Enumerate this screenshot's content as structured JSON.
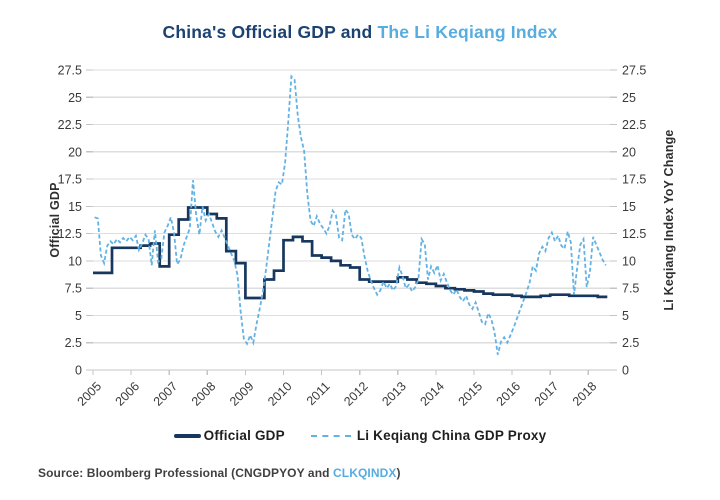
{
  "title": {
    "part1": "China's Official GDP and ",
    "part2": "The Li Keqiang Index"
  },
  "colors": {
    "navy_line": "#17375E",
    "blue_line": "#63B2E4",
    "title_navy": "#1C4272",
    "title_blue": "#57ACE0",
    "grid": "#DEDEDE",
    "axis": "#C4C4C4",
    "tick_text": "#3A3A3A",
    "legend_text": "#1F1F1F",
    "source_text": "#3F3F3F"
  },
  "legend": {
    "items": [
      {
        "label": "Official GDP",
        "style": "solid",
        "color": "#17375E"
      },
      {
        "label": "Li Keqiang China GDP Proxy",
        "style": "dashed",
        "color": "#63B2E4"
      }
    ]
  },
  "source": {
    "prefix": "Source: Bloomberg Professional (CNGDPYOY and ",
    "ticker": "CLKQINDX",
    "suffix": ")"
  },
  "chart_data": {
    "type": "line",
    "title": "China's Official GDP and The Li Keqiang Index",
    "ylabel_left": "Official GDP",
    "ylabel_right": "Li Keqiang Index YoY Change",
    "xlabel": "",
    "ylim": [
      0,
      27.5
    ],
    "xlim": [
      2005,
      2018.57
    ],
    "grid": "horizontal",
    "legend_position": "bottom",
    "grid_color": "#DEDEDE",
    "axis_color": "#C4C4C4",
    "y_ticks": [
      0,
      2.5,
      5,
      7.5,
      10,
      12.5,
      15,
      17.5,
      20,
      22.5,
      25,
      27.5
    ],
    "x_ticks": [
      "2005",
      "2006",
      "2007",
      "2008",
      "2009",
      "2010",
      "2011",
      "2012",
      "2013",
      "2014",
      "2015",
      "2016",
      "2017",
      "2018"
    ],
    "series": [
      {
        "name": "Official GDP",
        "render": "step",
        "frequency": "quarterly",
        "x_start": 2005.0,
        "x_step": 0.25,
        "color": "#17375E",
        "width": 2.7,
        "dash": "",
        "values": [
          8.9,
          8.9,
          11.2,
          11.2,
          11.2,
          11.4,
          11.6,
          9.5,
          12.4,
          13.8,
          14.9,
          14.9,
          14.3,
          13.9,
          10.9,
          9.8,
          6.6,
          6.6,
          8.3,
          9.1,
          11.9,
          12.2,
          11.8,
          10.5,
          10.3,
          10.0,
          9.6,
          9.4,
          8.3,
          8.1,
          8.1,
          8.1,
          8.5,
          8.3,
          8.0,
          7.9,
          7.7,
          7.5,
          7.4,
          7.3,
          7.2,
          7.0,
          6.9,
          6.9,
          6.8,
          6.7,
          6.7,
          6.8,
          6.9,
          6.9,
          6.8,
          6.8,
          6.8,
          6.7
        ]
      },
      {
        "name": "Li Keqiang China GDP Proxy",
        "render": "line",
        "frequency": "monthly",
        "x_start": 2005.042,
        "x_step": 0.083333,
        "color": "#63B2E4",
        "width": 1.8,
        "dash": "4 2.5",
        "values": [
          14.0,
          13.9,
          10.5,
          9.8,
          11.4,
          11.8,
          11.5,
          12.0,
          11.7,
          12.1,
          11.8,
          12.2,
          11.9,
          12.3,
          11.0,
          11.6,
          12.4,
          12.0,
          9.6,
          12.8,
          9.9,
          10.2,
          12.6,
          13.2,
          14.0,
          12.6,
          9.7,
          10.1,
          11.4,
          12.2,
          13.0,
          17.4,
          14.2,
          12.4,
          15.0,
          13.7,
          14.3,
          13.5,
          12.7,
          12.2,
          12.8,
          12.1,
          11.4,
          10.7,
          10.0,
          8.7,
          5.4,
          2.9,
          2.4,
          3.2,
          2.5,
          4.2,
          5.6,
          7.2,
          9.2,
          11.6,
          14.0,
          16.4,
          17.2,
          17.0,
          19.0,
          22.8,
          26.9,
          26.6,
          23.3,
          21.3,
          20.1,
          16.2,
          13.7,
          13.2,
          14.1,
          13.4,
          13.0,
          12.5,
          13.2,
          14.6,
          14.2,
          12.1,
          11.9,
          14.7,
          14.3,
          12.4,
          12.0,
          12.4,
          12.1,
          10.4,
          9.1,
          8.2,
          7.5,
          6.9,
          7.3,
          8.1,
          7.5,
          7.9,
          7.3,
          7.7,
          9.4,
          8.6,
          7.5,
          7.8,
          7.2,
          7.6,
          8.3,
          12.0,
          11.5,
          8.3,
          9.5,
          8.9,
          9.6,
          8.2,
          8.8,
          8.0,
          7.3,
          6.9,
          7.4,
          6.7,
          6.3,
          6.8,
          6.0,
          5.6,
          6.2,
          5.3,
          4.4,
          4.2,
          5.2,
          4.6,
          3.4,
          1.4,
          2.6,
          3.0,
          2.5,
          3.2,
          3.9,
          4.7,
          5.5,
          6.3,
          7.1,
          8.0,
          9.5,
          9.1,
          10.7,
          11.3,
          10.9,
          12.1,
          12.6,
          11.8,
          12.3,
          11.4,
          11.1,
          12.7,
          11.7,
          6.9,
          9.4,
          11.5,
          12.0,
          7.6,
          9.0,
          12.2,
          11.5,
          10.8,
          10.1,
          9.6
        ]
      }
    ]
  }
}
